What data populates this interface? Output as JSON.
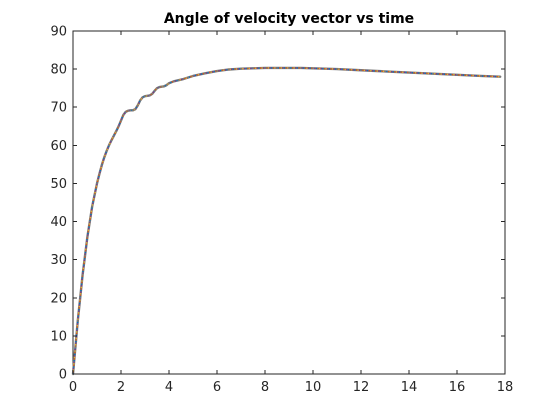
{
  "chart_data": {
    "type": "line",
    "title": "Angle of velocity vector vs time",
    "xlabel": "",
    "ylabel": "",
    "xlim": [
      0,
      18
    ],
    "ylim": [
      0,
      90
    ],
    "xticks": [
      0,
      2,
      4,
      6,
      8,
      10,
      12,
      14,
      16,
      18
    ],
    "yticks": [
      0,
      10,
      20,
      30,
      40,
      50,
      60,
      70,
      80,
      90
    ],
    "grid": false,
    "series": [
      {
        "color": "#7a7a7a",
        "style": "dotted multicolor",
        "x": [
          0,
          0.1,
          0.2,
          0.3,
          0.4,
          0.5,
          0.6,
          0.7,
          0.8,
          0.9,
          1.0,
          1.1,
          1.2,
          1.3,
          1.4,
          1.5,
          1.6,
          1.7,
          1.8,
          1.9,
          2.0,
          2.1,
          2.2,
          2.3,
          2.4,
          2.5,
          2.6,
          2.7,
          2.8,
          2.9,
          3.0,
          3.1,
          3.2,
          3.3,
          3.4,
          3.5,
          3.6,
          3.7,
          3.8,
          3.9,
          4.0,
          4.2,
          4.4,
          4.6,
          4.8,
          5.0,
          5.5,
          6.0,
          6.5,
          7.0,
          7.5,
          8.0,
          8.5,
          9.0,
          9.5,
          10.0,
          11.0,
          12.0,
          13.0,
          14.0,
          15.0,
          16.0,
          17.0,
          17.8
        ],
        "y": [
          0,
          7,
          14,
          20,
          26,
          31,
          36,
          40,
          44,
          47,
          50,
          52.5,
          54.8,
          56.8,
          58.5,
          60,
          61.3,
          62.5,
          63.7,
          65,
          66.5,
          68,
          68.8,
          69.1,
          69.2,
          69.2,
          69.5,
          70.5,
          71.8,
          72.6,
          72.9,
          73,
          73.1,
          73.5,
          74.3,
          75,
          75.3,
          75.4,
          75.5,
          75.8,
          76.3,
          76.8,
          77.1,
          77.4,
          77.8,
          78.2,
          78.9,
          79.5,
          79.9,
          80.1,
          80.2,
          80.3,
          80.3,
          80.3,
          80.3,
          80.2,
          80,
          79.7,
          79.4,
          79.1,
          78.8,
          78.5,
          78.2,
          78
        ]
      }
    ]
  },
  "colors": {
    "axis": "#262626",
    "dot_colors": [
      "#0072bd",
      "#d95319",
      "#edb120",
      "#7e2f8e"
    ]
  }
}
